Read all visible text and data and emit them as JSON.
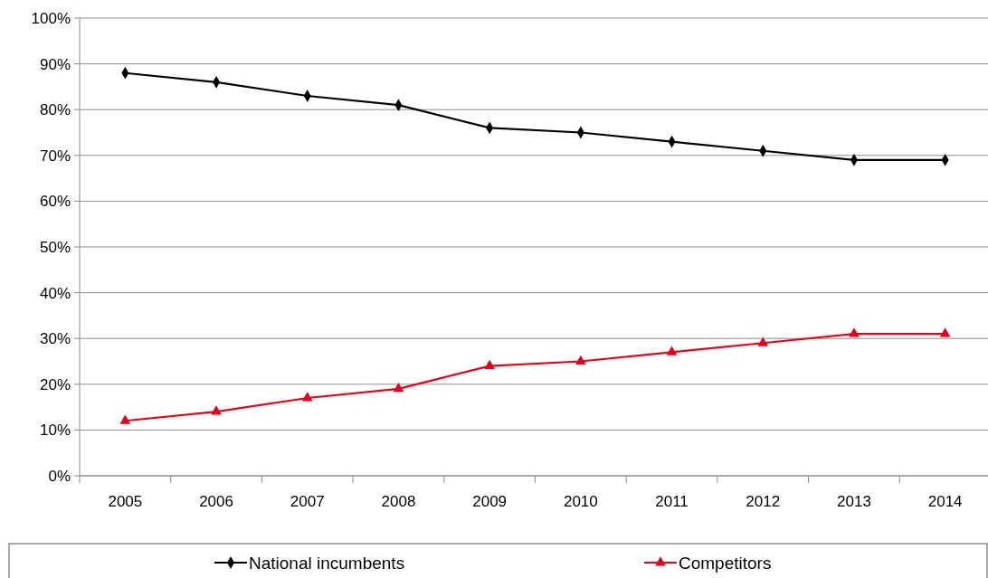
{
  "chart_data": {
    "type": "line",
    "categories": [
      "2005",
      "2006",
      "2007",
      "2008",
      "2009",
      "2010",
      "2011",
      "2012",
      "2013",
      "2014"
    ],
    "series": [
      {
        "name": "National incumbents",
        "color": "#000000",
        "marker": "diamond",
        "values": [
          88,
          86,
          83,
          81,
          76,
          75,
          73,
          71,
          69,
          69
        ]
      },
      {
        "name": "Competitors",
        "color": "#e2001a",
        "marker": "triangle",
        "values": [
          12,
          14,
          17,
          19,
          24,
          25,
          27,
          29,
          31,
          31
        ]
      }
    ],
    "ylim": [
      0,
      100
    ],
    "yticks": [
      {
        "value": 0,
        "label": "0%"
      },
      {
        "value": 10,
        "label": "10%"
      },
      {
        "value": 20,
        "label": "20%"
      },
      {
        "value": 30,
        "label": "30%"
      },
      {
        "value": 40,
        "label": "40%"
      },
      {
        "value": 50,
        "label": "50%"
      },
      {
        "value": 60,
        "label": "60%"
      },
      {
        "value": 70,
        "label": "70%"
      },
      {
        "value": 80,
        "label": "80%"
      },
      {
        "value": 90,
        "label": "90%"
      },
      {
        "value": 100,
        "label": "100%"
      }
    ],
    "grid": "y",
    "legend": "bottom",
    "line_style": "solid"
  }
}
